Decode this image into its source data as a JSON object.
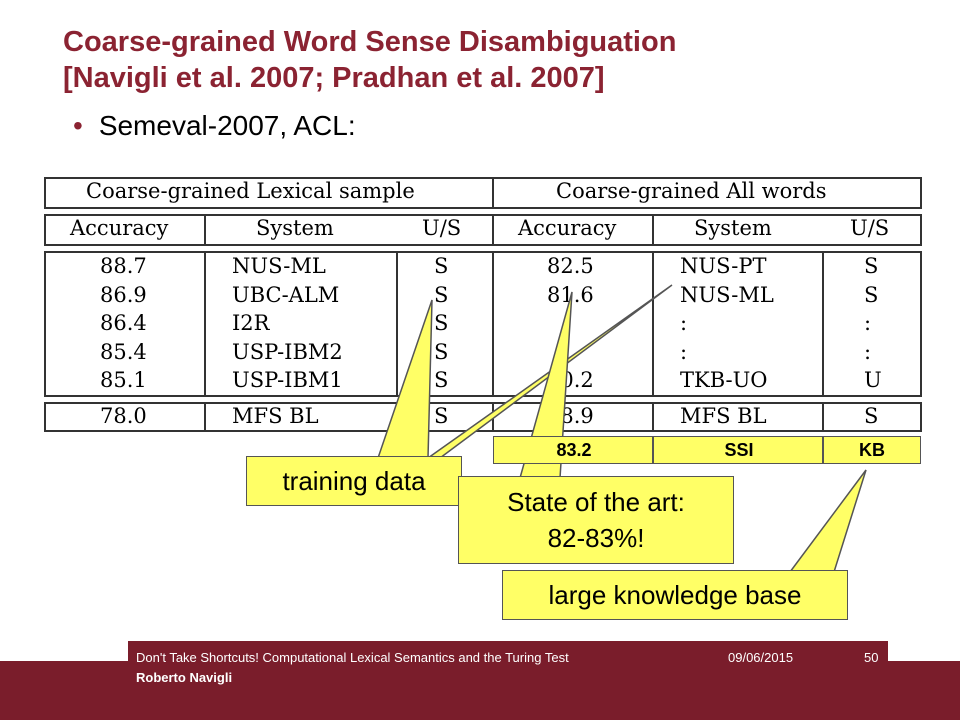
{
  "title": {
    "line1": "Coarse-grained Word Sense Disambiguation",
    "line2": "[Navigli et al. 2007; Pradhan et al. 2007]"
  },
  "bullet": "Semeval-2007, ACL:",
  "table": {
    "groups": [
      "Coarse-grained Lexical sample",
      "Coarse-grained All words"
    ],
    "headers": [
      "Accuracy",
      "System",
      "U/S",
      "Accuracy",
      "System",
      "U/S"
    ],
    "lexical_rows": [
      [
        "88.7",
        "NUS-ML",
        "S"
      ],
      [
        "86.9",
        "UBC-ALM",
        "S"
      ],
      [
        "86.4",
        "I2R",
        "S"
      ],
      [
        "85.4",
        "USP-IBM2",
        "S"
      ],
      [
        "85.1",
        "USP-IBM1",
        "S"
      ]
    ],
    "allwords_rows": [
      [
        "82.5",
        "NUS-PT",
        "S"
      ],
      [
        "81.6",
        "NUS-ML",
        "S"
      ],
      [
        "",
        ":",
        ":"
      ],
      [
        "",
        ":",
        ":"
      ],
      [
        "70.2",
        "TKB-UO",
        "U"
      ]
    ],
    "baseline_lexical": [
      "78.0",
      "MFS BL",
      "S"
    ],
    "baseline_allwords": [
      "78.9",
      "MFS BL",
      "S"
    ]
  },
  "highlight_row": [
    "83.2",
    "SSI",
    "KB"
  ],
  "callouts": {
    "training": "training data",
    "state_line1": "State of the art:",
    "state_line2": "82-83%!",
    "kb": "large knowledge base"
  },
  "footer": {
    "talk": "Don't Take Shortcuts! Computational Lexical Semantics and the Turing Test",
    "author": "Roberto Navigli",
    "date": "09/06/2015",
    "page": "50"
  },
  "colors": {
    "title": "#8b2332",
    "footer": "#7a1d2b",
    "callout": "#ffff66"
  }
}
